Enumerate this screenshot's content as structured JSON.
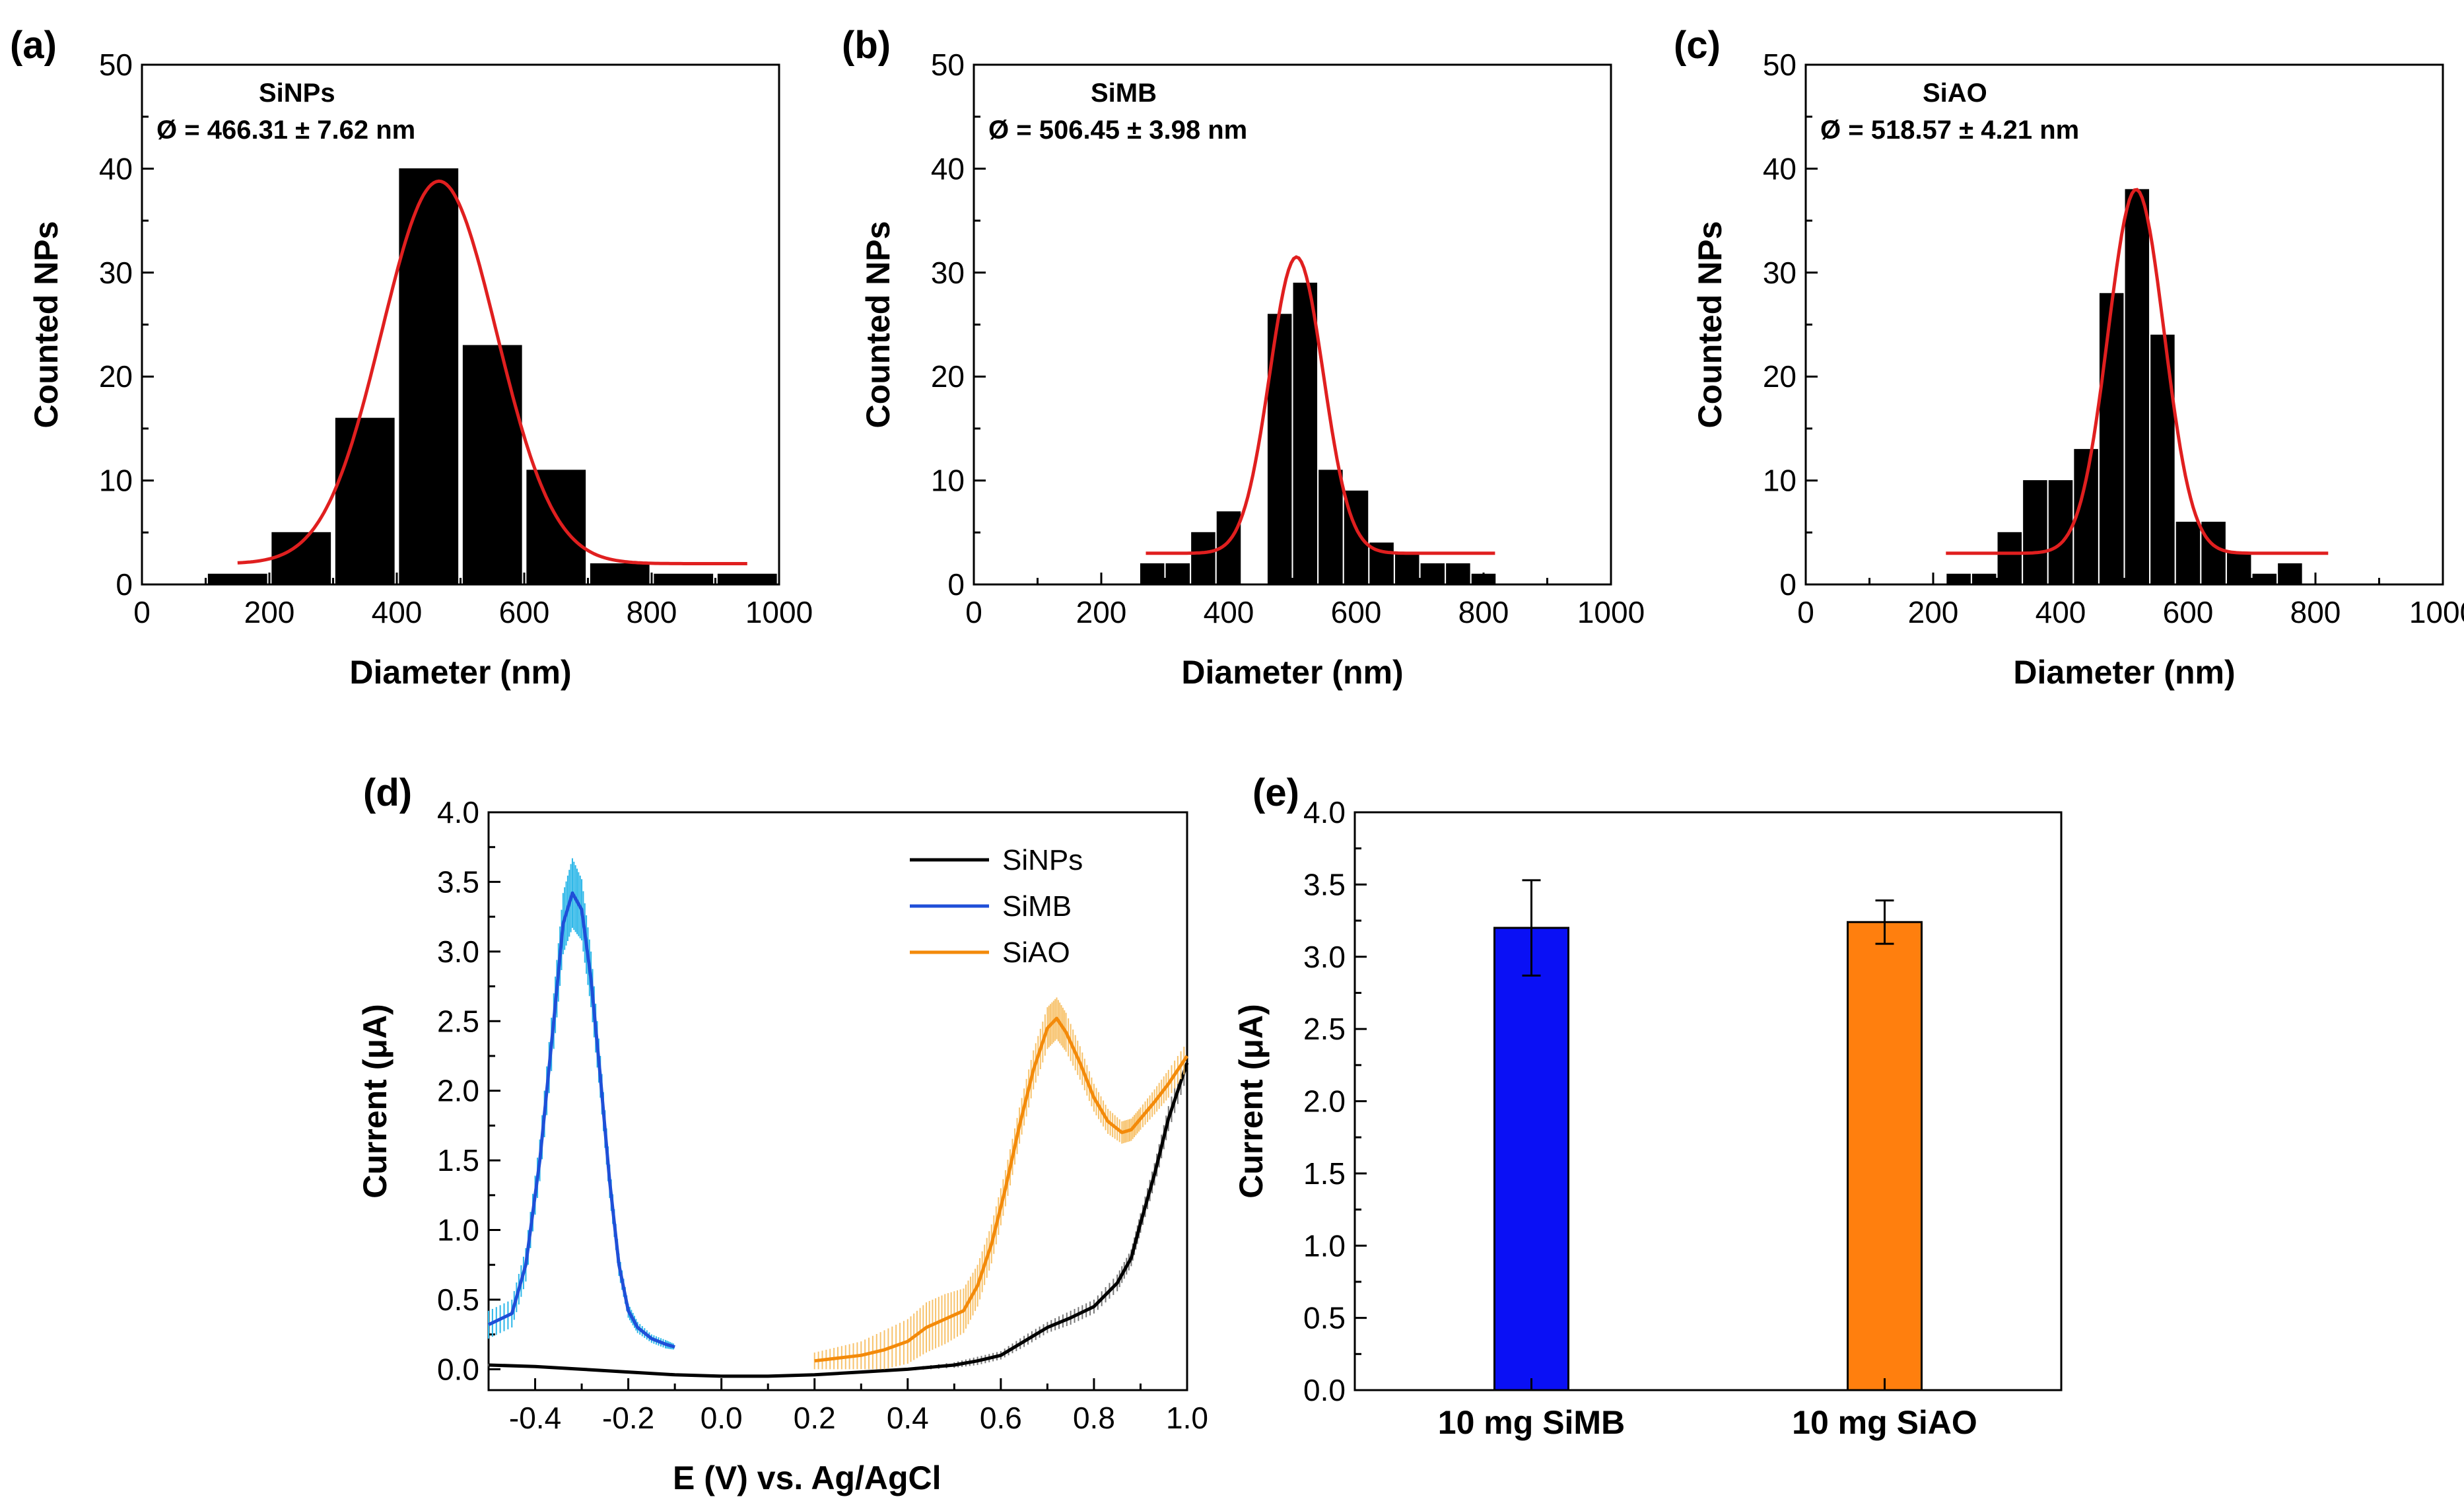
{
  "chart_data": [
    {
      "id": "a",
      "type": "bar",
      "panel_label": "(a)",
      "xlabel": "Diameter (nm)",
      "ylabel": "Counted NPs",
      "xlim": [
        0,
        1000
      ],
      "ylim": [
        0,
        50
      ],
      "xticks": [
        0,
        200,
        400,
        600,
        800,
        1000
      ],
      "yticks": [
        0,
        10,
        20,
        30,
        40,
        50
      ],
      "bin_width": 100,
      "bars": [
        {
          "x": 150,
          "y": 1
        },
        {
          "x": 250,
          "y": 5
        },
        {
          "x": 350,
          "y": 16
        },
        {
          "x": 450,
          "y": 40
        },
        {
          "x": 550,
          "y": 23
        },
        {
          "x": 650,
          "y": 11
        },
        {
          "x": 750,
          "y": 2
        },
        {
          "x": 850,
          "y": 1
        },
        {
          "x": 950,
          "y": 1
        }
      ],
      "fit": {
        "type": "gaussian",
        "baseline": 2,
        "amplitude": 36.8,
        "center": 466.31,
        "sigma": 90,
        "x_range": [
          150,
          950
        ],
        "color": "#e01f1f"
      },
      "annotations": [
        "SiNPs",
        "Ø = 466.31 ± 7.62 nm"
      ]
    },
    {
      "id": "b",
      "type": "bar",
      "panel_label": "(b)",
      "xlabel": "Diameter (nm)",
      "ylabel": "Counted NPs",
      "xlim": [
        0,
        1000
      ],
      "ylim": [
        0,
        50
      ],
      "xticks": [
        0,
        200,
        400,
        600,
        800,
        1000
      ],
      "yticks": [
        0,
        10,
        20,
        30,
        40,
        50
      ],
      "bin_width": 40,
      "bars": [
        {
          "x": 280,
          "y": 2
        },
        {
          "x": 320,
          "y": 2
        },
        {
          "x": 360,
          "y": 5
        },
        {
          "x": 400,
          "y": 7
        },
        {
          "x": 480,
          "y": 26
        },
        {
          "x": 520,
          "y": 29
        },
        {
          "x": 560,
          "y": 11
        },
        {
          "x": 600,
          "y": 9
        },
        {
          "x": 640,
          "y": 4
        },
        {
          "x": 680,
          "y": 3
        },
        {
          "x": 720,
          "y": 2
        },
        {
          "x": 760,
          "y": 2
        },
        {
          "x": 800,
          "y": 1
        }
      ],
      "fit": {
        "type": "gaussian",
        "baseline": 3,
        "amplitude": 28.5,
        "center": 506.45,
        "sigma": 42,
        "x_range": [
          270,
          820
        ],
        "color": "#e01f1f"
      },
      "annotations": [
        "SiMB",
        "Ø = 506.45 ± 3.98 nm"
      ]
    },
    {
      "id": "c",
      "type": "bar",
      "panel_label": "(c)",
      "xlabel": "Diameter (nm)",
      "ylabel": "Counted NPs",
      "xlim": [
        0,
        1000
      ],
      "ylim": [
        0,
        50
      ],
      "xticks": [
        0,
        200,
        400,
        600,
        800,
        1000
      ],
      "yticks": [
        0,
        10,
        20,
        30,
        40,
        50
      ],
      "bin_width": 40,
      "bars": [
        {
          "x": 240,
          "y": 1
        },
        {
          "x": 280,
          "y": 1
        },
        {
          "x": 320,
          "y": 5
        },
        {
          "x": 360,
          "y": 10
        },
        {
          "x": 400,
          "y": 10
        },
        {
          "x": 440,
          "y": 13
        },
        {
          "x": 480,
          "y": 28
        },
        {
          "x": 520,
          "y": 38
        },
        {
          "x": 560,
          "y": 24
        },
        {
          "x": 600,
          "y": 6
        },
        {
          "x": 640,
          "y": 6
        },
        {
          "x": 680,
          "y": 3
        },
        {
          "x": 720,
          "y": 1
        },
        {
          "x": 760,
          "y": 2
        }
      ],
      "fit": {
        "type": "gaussian",
        "baseline": 3,
        "amplitude": 35,
        "center": 518.57,
        "sigma": 44,
        "x_range": [
          220,
          820
        ],
        "color": "#e01f1f"
      },
      "annotations": [
        "SiAO",
        "Ø = 518.57 ± 4.21 nm"
      ]
    },
    {
      "id": "d",
      "type": "line",
      "panel_label": "(d)",
      "xlabel": "E (V) vs. Ag/AgCl",
      "ylabel": "Current (μA)",
      "xlim": [
        -0.5,
        1.0
      ],
      "ylim": [
        -0.15,
        4.0
      ],
      "xticks": [
        "-0.4",
        "-0.2",
        "0.0",
        "0.2",
        "0.4",
        "0.6",
        "0.8",
        "1.0"
      ],
      "yticks": [
        "0.0",
        "0.5",
        "1.0",
        "1.5",
        "2.0",
        "2.5",
        "3.0",
        "3.5",
        "4.0"
      ],
      "legend_position": "top-right",
      "series": [
        {
          "name": "SiNPs",
          "color": "#000000",
          "error_color": "#777777",
          "x": [
            -0.5,
            -0.4,
            -0.3,
            -0.2,
            -0.1,
            0.0,
            0.1,
            0.2,
            0.3,
            0.4,
            0.5,
            0.55,
            0.6,
            0.65,
            0.7,
            0.75,
            0.8,
            0.85,
            0.88,
            0.9,
            0.93,
            0.96,
            1.0
          ],
          "y": [
            0.03,
            0.02,
            0.0,
            -0.02,
            -0.04,
            -0.05,
            -0.05,
            -0.04,
            -0.02,
            0.0,
            0.03,
            0.06,
            0.1,
            0.2,
            0.3,
            0.37,
            0.45,
            0.62,
            0.8,
            1.05,
            1.4,
            1.8,
            2.2
          ],
          "error": [
            0.01,
            0.01,
            0.01,
            0.01,
            0.01,
            0.01,
            0.01,
            0.01,
            0.01,
            0.01,
            0.02,
            0.03,
            0.03,
            0.04,
            0.04,
            0.05,
            0.05,
            0.06,
            0.06,
            0.07,
            0.08,
            0.09,
            0.1
          ]
        },
        {
          "name": "SiMB",
          "color": "#1f4fd8",
          "error_color": "#29b6e8",
          "x": [
            -0.5,
            -0.45,
            -0.42,
            -0.39,
            -0.36,
            -0.34,
            -0.32,
            -0.3,
            -0.28,
            -0.26,
            -0.24,
            -0.22,
            -0.2,
            -0.18,
            -0.15,
            -0.12,
            -0.1
          ],
          "y": [
            0.32,
            0.4,
            0.75,
            1.5,
            2.5,
            3.2,
            3.42,
            3.3,
            2.8,
            2.1,
            1.35,
            0.75,
            0.42,
            0.3,
            0.22,
            0.18,
            0.16
          ],
          "error": [
            0.1,
            0.1,
            0.12,
            0.15,
            0.2,
            0.22,
            0.25,
            0.22,
            0.2,
            0.15,
            0.12,
            0.08,
            0.05,
            0.04,
            0.03,
            0.03,
            0.02
          ]
        },
        {
          "name": "SiAO",
          "color": "#f38a0a",
          "error_color": "#f7c26b",
          "x": [
            0.2,
            0.25,
            0.3,
            0.35,
            0.4,
            0.44,
            0.48,
            0.52,
            0.55,
            0.58,
            0.61,
            0.64,
            0.67,
            0.7,
            0.72,
            0.74,
            0.77,
            0.8,
            0.83,
            0.86,
            0.88,
            0.9,
            0.93,
            0.96,
            1.0
          ],
          "y": [
            0.06,
            0.08,
            0.1,
            0.14,
            0.2,
            0.3,
            0.36,
            0.42,
            0.6,
            0.9,
            1.3,
            1.75,
            2.15,
            2.45,
            2.52,
            2.42,
            2.2,
            1.95,
            1.78,
            1.7,
            1.72,
            1.8,
            1.92,
            2.05,
            2.25
          ],
          "error": [
            0.06,
            0.08,
            0.1,
            0.14,
            0.16,
            0.18,
            0.18,
            0.16,
            0.15,
            0.14,
            0.13,
            0.13,
            0.14,
            0.15,
            0.15,
            0.14,
            0.12,
            0.1,
            0.09,
            0.08,
            0.08,
            0.08,
            0.09,
            0.1,
            0.1
          ]
        }
      ]
    },
    {
      "id": "e",
      "type": "bar",
      "panel_label": "(e)",
      "ylabel": "Current (μA)",
      "ylim": [
        0,
        4.0
      ],
      "yticks": [
        "0.0",
        "0.5",
        "1.0",
        "1.5",
        "2.0",
        "2.5",
        "3.0",
        "3.5",
        "4.0"
      ],
      "categories": [
        "10 mg SiMB",
        "10 mg SiAO"
      ],
      "values": [
        3.2,
        3.24
      ],
      "errors": [
        0.33,
        0.15
      ],
      "colors": [
        "#0a10f5",
        "#ff7f0e"
      ]
    }
  ]
}
